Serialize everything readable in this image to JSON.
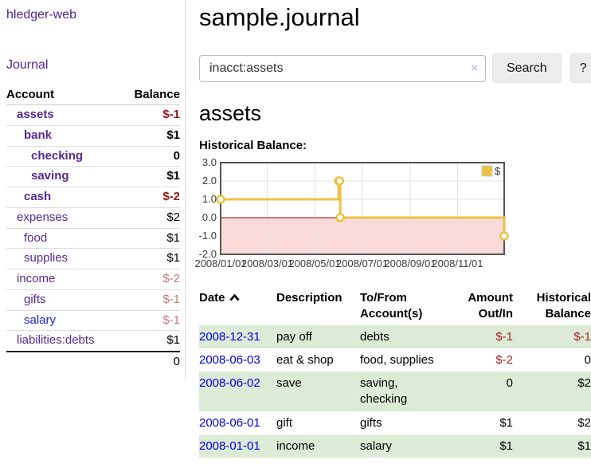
{
  "sidebar": {
    "app_title": "hledger-web",
    "journal_label": "Journal",
    "accounts_table": {
      "col_account": "Account",
      "col_balance": "Balance",
      "rows": [
        {
          "name": "assets",
          "level": 1,
          "bold": true,
          "balance": "$-1",
          "balance_style": "neg-strong",
          "link_color": "purple"
        },
        {
          "name": "bank",
          "level": 2,
          "bold": true,
          "balance": "$1",
          "balance_style": "strong",
          "link_color": "purple"
        },
        {
          "name": "checking",
          "level": 3,
          "bold": true,
          "balance": "0",
          "balance_style": "strong",
          "link_color": "purple"
        },
        {
          "name": "saving",
          "level": 3,
          "bold": true,
          "balance": "$1",
          "balance_style": "strong",
          "link_color": "purple"
        },
        {
          "name": "cash",
          "level": 2,
          "bold": true,
          "balance": "$-2",
          "balance_style": "neg-strong",
          "link_color": "purple"
        },
        {
          "name": "expenses",
          "level": 1,
          "bold": false,
          "balance": "$2",
          "balance_style": "normal",
          "link_color": "purple"
        },
        {
          "name": "food",
          "level": 2,
          "bold": false,
          "balance": "$1",
          "balance_style": "normal",
          "link_color": "purple"
        },
        {
          "name": "supplies",
          "level": 2,
          "bold": false,
          "balance": "$1",
          "balance_style": "normal",
          "link_color": "purple"
        },
        {
          "name": "income",
          "level": 1,
          "bold": false,
          "balance": "$-2",
          "balance_style": "neg-muted",
          "link_color": "purple"
        },
        {
          "name": "gifts",
          "level": 2,
          "bold": false,
          "balance": "$-1",
          "balance_style": "neg-muted",
          "link_color": "purple"
        },
        {
          "name": "salary",
          "level": 2,
          "bold": false,
          "balance": "$-1",
          "balance_style": "neg-muted",
          "link_color": "blue"
        },
        {
          "name": "liabilities:debts",
          "level": 1,
          "bold": false,
          "balance": "$1",
          "balance_style": "normal",
          "link_color": "purple"
        }
      ],
      "total": "0"
    }
  },
  "header": {
    "title": "sample.journal"
  },
  "search": {
    "query": "inacct:assets",
    "clear_icon": "×",
    "button_label": "Search",
    "help_label": "?"
  },
  "account_page": {
    "heading": "assets",
    "chart_title": "Historical Balance:"
  },
  "chart_data": {
    "type": "line",
    "steps": true,
    "title": "Historical Balance:",
    "series": [
      {
        "name": "$",
        "color": "#edc240",
        "points": [
          [
            "2008-01-01",
            1
          ],
          [
            "2008-06-01",
            2
          ],
          [
            "2008-06-02",
            2
          ],
          [
            "2008-06-03",
            0
          ],
          [
            "2008-12-31",
            -1
          ]
        ]
      }
    ],
    "x_ticks": [
      "2008/01/01",
      "2008/03/01",
      "2008/05/01",
      "2008/07/01",
      "2008/09/01",
      "2008/11/01"
    ],
    "y_ticks": [
      3.0,
      2.0,
      1.0,
      0.0,
      -1.0,
      -2.0
    ],
    "ylim": [
      -2,
      3
    ],
    "x_range": [
      "2008-01-01",
      "2008-12-31"
    ],
    "legend": {
      "label": "$",
      "position": "top-right"
    },
    "grid": true,
    "colors": {
      "line": "#edc240",
      "marker_fill": "#ffffff",
      "negative_region": "#fbdada",
      "zero_line": "#8b0000",
      "border": "#545454",
      "gridline": "#e2e2e2",
      "tick_text": "#3c3c3c"
    }
  },
  "transactions": {
    "columns": {
      "date": "Date",
      "description": "Description",
      "accounts": "To/From Account(s)",
      "amount": "Amount Out/In",
      "balance": "Historical Balance"
    },
    "sort": {
      "column": "date",
      "direction": "asc",
      "icon": "chevron-up"
    },
    "rows": [
      {
        "date": "2008-12-31",
        "description": "pay off",
        "accounts": "debts",
        "amount": "$-1",
        "amount_negative": true,
        "balance": "$-1",
        "balance_negative": true
      },
      {
        "date": "2008-06-03",
        "description": "eat & shop",
        "accounts": "food, supplies",
        "amount": "$-2",
        "amount_negative": true,
        "balance": "0",
        "balance_negative": false
      },
      {
        "date": "2008-06-02",
        "description": "save",
        "accounts": "saving,\nchecking",
        "amount": "0",
        "amount_negative": false,
        "balance": "$2",
        "balance_negative": false
      },
      {
        "date": "2008-06-01",
        "description": "gift",
        "accounts": "gifts",
        "amount": "$1",
        "amount_negative": false,
        "balance": "$2",
        "balance_negative": false
      },
      {
        "date": "2008-01-01",
        "description": "income",
        "accounts": "salary",
        "amount": "$1",
        "amount_negative": false,
        "balance": "$1",
        "balance_negative": false
      }
    ]
  },
  "colors": {
    "link_purple": "#4c2596",
    "link_blue": "#2424d2",
    "date_link_blue": "#0000e0",
    "neg_strong": "#8e1b1b",
    "neg_muted": "#c07a7a",
    "row_stripe_green": "#dcebd6"
  }
}
